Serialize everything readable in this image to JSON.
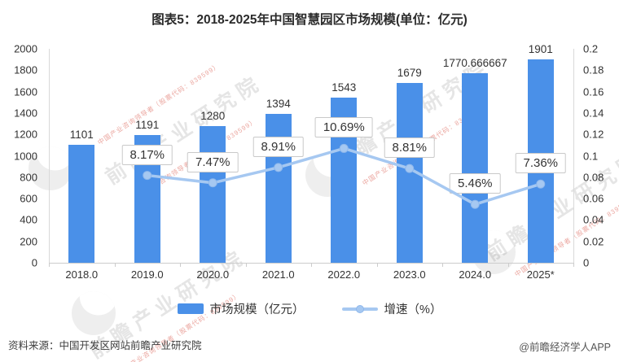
{
  "title": "图表5：2018-2025年中国智慧园区市场规模(单位：亿元)",
  "chart_data": {
    "type": "bar",
    "combo": "bar+line",
    "categories": [
      "2018.0",
      "2019.0",
      "2020.0",
      "2021.0",
      "2022.0",
      "2023.0",
      "2024.0",
      "2025*"
    ],
    "series": [
      {
        "name": "市场规模（亿元）",
        "kind": "bar",
        "axis": "left",
        "color": "#4a90e8",
        "values": [
          1101,
          1191,
          1280,
          1394,
          1543,
          1679,
          1770.666667,
          1901
        ],
        "labels": [
          "1101",
          "1191",
          "1280",
          "1394",
          "1543",
          "1679",
          "1770.666667",
          "1901"
        ]
      },
      {
        "name": "增速（%）",
        "kind": "line",
        "axis": "right",
        "color": "#a6c8f1",
        "values": [
          null,
          0.0817,
          0.0747,
          0.0891,
          0.1069,
          0.0881,
          0.0546,
          0.0736
        ],
        "labels": [
          null,
          "8.17%",
          "7.47%",
          "8.91%",
          "10.69%",
          "8.81%",
          "5.46%",
          "7.36%"
        ]
      }
    ],
    "left_axis": {
      "min": 0,
      "max": 2000,
      "ticks": [
        "2000",
        "1800",
        "1600",
        "1400",
        "1200",
        "1000",
        "800",
        "600",
        "400",
        "200",
        "0"
      ]
    },
    "right_axis": {
      "min": 0,
      "max": 0.2,
      "ticks": [
        "0.2",
        "0.18",
        "0.16",
        "0.14",
        "0.12",
        "0.1",
        "0.08",
        "0.06",
        "0.04",
        "0.02",
        "0"
      ]
    },
    "legend": [
      {
        "label": "市场规模（亿元）"
      },
      {
        "label": "增速（%）"
      }
    ],
    "grid": false,
    "legend_position": "bottom"
  },
  "footer": {
    "source": "资料来源：中国开发区网站前瞻产业研究院",
    "brand": "@前瞻经济学人APP"
  },
  "watermark": {
    "main": "前瞻产业研究院",
    "sub": "中国产业咨询领导者（股票代码：839599）"
  },
  "colors": {
    "bar": "#4a90e8",
    "line": "#a6c8f1",
    "axis": "#d9d9d9",
    "label_text": "#333333"
  }
}
